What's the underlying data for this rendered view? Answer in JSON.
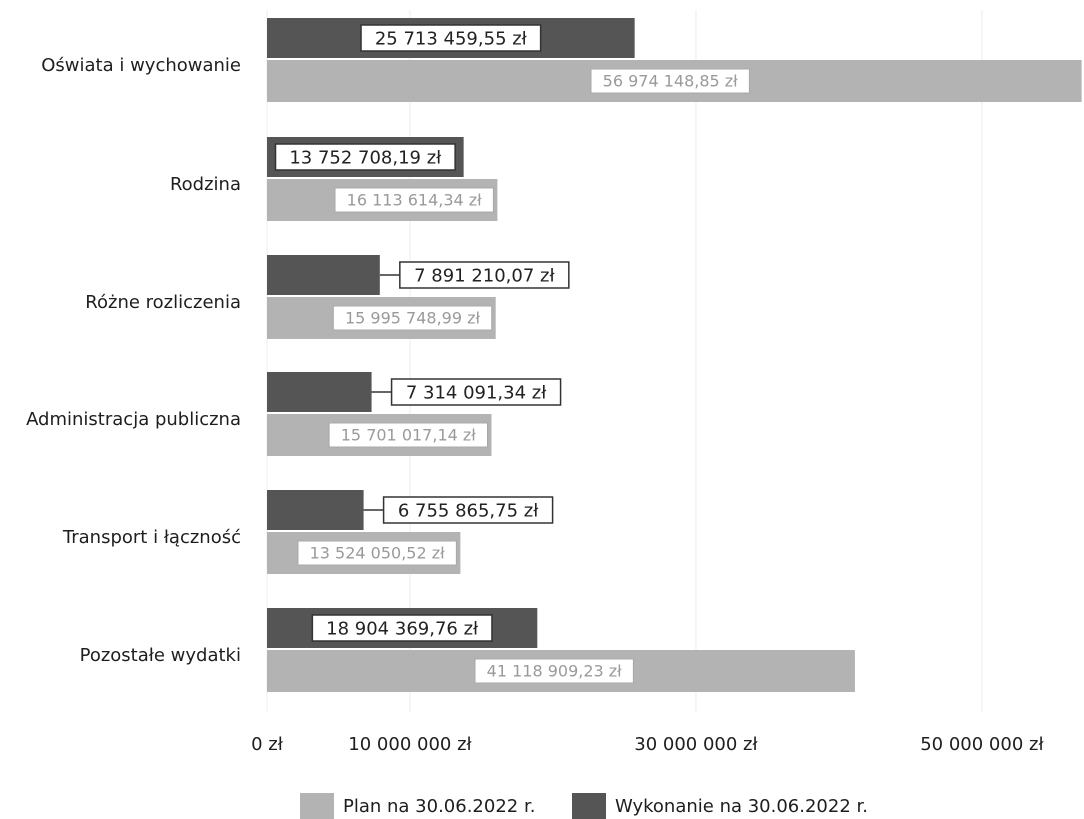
{
  "chart_data": {
    "type": "bar",
    "orientation": "horizontal",
    "categories": [
      "Oświata i wychowanie",
      "Rodzina",
      "Różne rozliczenia",
      "Administracja publiczna",
      "Transport i łączność",
      "Pozostałe wydatki"
    ],
    "series": [
      {
        "name": "Wykonanie na 30.06.2022 r.",
        "color": "#555555",
        "values": [
          25713459.55,
          13752708.19,
          7891210.07,
          7314091.34,
          6755865.75,
          18904369.76
        ],
        "labels": [
          "25 713 459,55 zł",
          "13 752 708,19 zł",
          "7 891 210,07 zł",
          "7 314 091,34 zł",
          "6 755 865,75 zł",
          "18 904 369,76 zł"
        ]
      },
      {
        "name": "Plan na 30.06.2022 r.",
        "color": "#b3b3b3",
        "values": [
          56974148.85,
          16113614.34,
          15995748.99,
          15701017.14,
          13524050.52,
          41118909.23
        ],
        "labels": [
          "56 974 148,85 zł",
          "16 113 614,34 zł",
          "15 995 748,99 zł",
          "15 701 017,14 zł",
          "13 524 050,52 zł",
          "41 118 909,23 zł"
        ]
      }
    ],
    "x_ticks": [
      {
        "value": 0,
        "label": "0 zł"
      },
      {
        "value": 10000000,
        "label": "10 000 000 zł"
      },
      {
        "value": 30000000,
        "label": "30 000 000 zł"
      },
      {
        "value": 50000000,
        "label": "50 000 000 zł"
      }
    ],
    "xlim": [
      0,
      57000000
    ],
    "legend": [
      {
        "label": "Plan na 30.06.2022 r.",
        "color": "#b3b3b3"
      },
      {
        "label": "Wykonanie na 30.06.2022 r.",
        "color": "#555555"
      }
    ],
    "legend_position": "bottom",
    "grid": true
  }
}
